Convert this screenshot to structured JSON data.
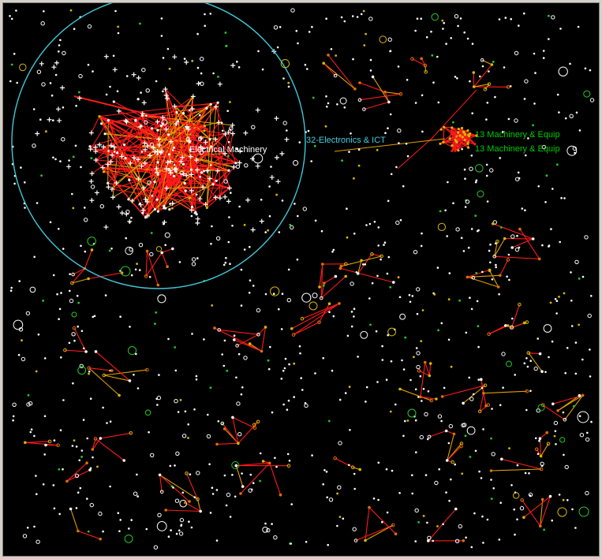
{
  "colors": {
    "background": "#000000",
    "node_white": "#ffffff",
    "node_yellow": "#d8b800",
    "node_green": "#22cc22",
    "node_orange": "#e07000",
    "edge_red": "#ff1a1a",
    "edge_orange": "#e0a000",
    "cluster_ring": "#40c8d8",
    "label_white": "#ffffff",
    "label_cyan": "#40d0e0",
    "label_green": "#00cc00"
  },
  "labels": {
    "electrical": "Electrical Machinery",
    "electronics": "32-Electronics & ICT",
    "machinery_a": "13 Machinery & Equip",
    "machinery_b": "13 Machinery & Equip"
  }
}
